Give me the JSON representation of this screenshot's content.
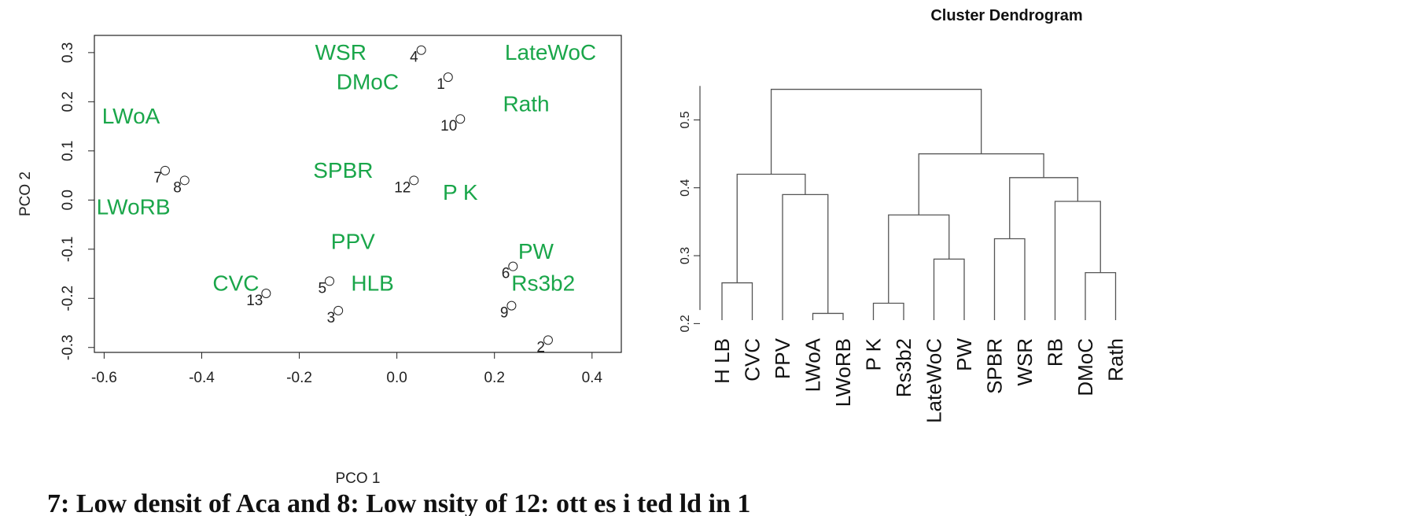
{
  "colors": {
    "label_green": "#1aa64a",
    "ink": "#222222",
    "line": "#555555"
  },
  "caption": "7: Low densit  of  Aca  and  8: Low   nsity of       12: ott  es  i  ted   ld      in  1",
  "chart_data": [
    {
      "type": "scatter",
      "title": "",
      "xlabel": "PCO 1",
      "ylabel": "PCO 2",
      "xlim": [
        -0.62,
        0.46
      ],
      "ylim": [
        -0.31,
        0.335
      ],
      "xticks": [
        "-0.6",
        "-0.4",
        "-0.2",
        "0.0",
        "0.2",
        "0.4"
      ],
      "yticks": [
        "-0.3",
        "-0.2",
        "-0.1",
        "0.0",
        "0.1",
        "0.2",
        "0.3"
      ],
      "grid": false,
      "points": [
        {
          "label": "4",
          "x": 0.05,
          "y": 0.305
        },
        {
          "label": "1",
          "x": 0.105,
          "y": 0.25
        },
        {
          "label": "10",
          "x": 0.13,
          "y": 0.165
        },
        {
          "label": "7",
          "x": -0.475,
          "y": 0.06
        },
        {
          "label": "8",
          "x": -0.435,
          "y": 0.04
        },
        {
          "label": "12",
          "x": 0.035,
          "y": 0.04
        },
        {
          "label": "6",
          "x": 0.238,
          "y": -0.135
        },
        {
          "label": "5",
          "x": -0.138,
          "y": -0.165
        },
        {
          "label": "13",
          "x": -0.268,
          "y": -0.19
        },
        {
          "label": "9",
          "x": 0.235,
          "y": -0.215
        },
        {
          "label": "3",
          "x": -0.12,
          "y": -0.225
        },
        {
          "label": "2",
          "x": 0.31,
          "y": -0.285
        }
      ],
      "annotations": [
        {
          "text": "WSR",
          "x": -0.115,
          "y": 0.3
        },
        {
          "text": "LateWoC",
          "x": 0.315,
          "y": 0.3
        },
        {
          "text": "DMoC",
          "x": -0.06,
          "y": 0.24
        },
        {
          "text": "Rath",
          "x": 0.265,
          "y": 0.195
        },
        {
          "text": "LWoA",
          "x": -0.545,
          "y": 0.17
        },
        {
          "text": "SPBR",
          "x": -0.11,
          "y": 0.06
        },
        {
          "text": "P K",
          "x": 0.13,
          "y": 0.015
        },
        {
          "text": "LWoRB",
          "x": -0.54,
          "y": -0.015
        },
        {
          "text": "PPV",
          "x": -0.09,
          "y": -0.085
        },
        {
          "text": "PW",
          "x": 0.285,
          "y": -0.105
        },
        {
          "text": "CVC",
          "x": -0.33,
          "y": -0.17
        },
        {
          "text": "HLB",
          "x": -0.05,
          "y": -0.17
        },
        {
          "text": "Rs3b2",
          "x": 0.3,
          "y": -0.17
        }
      ]
    },
    {
      "type": "dendrogram",
      "title": "Cluster Dendrogram",
      "ylim": [
        0.19,
        0.57
      ],
      "yticks": [
        "0.2",
        "0.3",
        "0.4",
        "0.5"
      ],
      "leaves": [
        "H LB",
        "CVC",
        "PPV",
        "LWoA",
        "LWoRB",
        "P K",
        "Rs3b2",
        "LateWoC",
        "PW",
        "SPBR",
        "WSR",
        "RB",
        "DMoC",
        "Rath"
      ],
      "merges": [
        {
          "a": -1,
          "b": -2,
          "h": 0.26
        },
        {
          "a": -4,
          "b": -5,
          "h": 0.215
        },
        {
          "a": -3,
          "b": 2,
          "h": 0.39
        },
        {
          "a": 1,
          "b": 3,
          "h": 0.42
        },
        {
          "a": -6,
          "b": -7,
          "h": 0.23
        },
        {
          "a": -8,
          "b": -9,
          "h": 0.295
        },
        {
          "a": 5,
          "b": 6,
          "h": 0.36
        },
        {
          "a": -10,
          "b": -11,
          "h": 0.325
        },
        {
          "a": -13,
          "b": -14,
          "h": 0.275
        },
        {
          "a": -12,
          "b": 9,
          "h": 0.38
        },
        {
          "a": 8,
          "b": 10,
          "h": 0.415
        },
        {
          "a": 7,
          "b": 11,
          "h": 0.45
        },
        {
          "a": 4,
          "b": 12,
          "h": 0.545
        }
      ]
    }
  ]
}
